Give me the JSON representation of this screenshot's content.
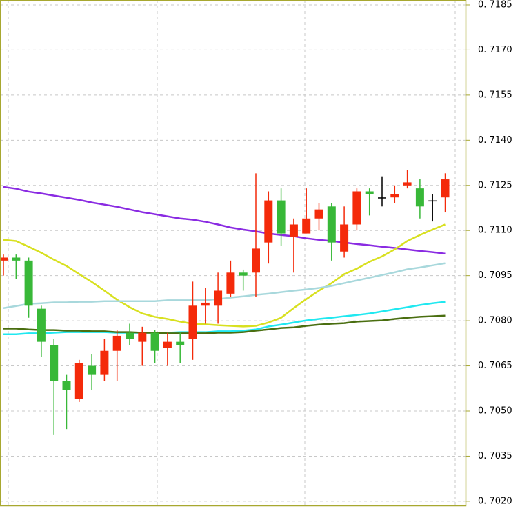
{
  "chart_data": {
    "type": "candlestick",
    "ylim": [
      0.70186,
      0.71866
    ],
    "yticks": [
      {
        "value": 0.7185,
        "label": "0. 7185"
      },
      {
        "value": 0.717,
        "label": "0. 7170"
      },
      {
        "value": 0.7155,
        "label": "0. 7155"
      },
      {
        "value": 0.714,
        "label": "0. 7140"
      },
      {
        "value": 0.7125,
        "label": "0. 7125"
      },
      {
        "value": 0.711,
        "label": "0. 7110"
      },
      {
        "value": 0.7095,
        "label": "0. 7095"
      },
      {
        "value": 0.708,
        "label": "0. 7080"
      },
      {
        "value": 0.7065,
        "label": "0. 7065"
      },
      {
        "value": 0.705,
        "label": "0. 7050"
      },
      {
        "value": 0.7035,
        "label": "0. 7035"
      },
      {
        "value": 0.702,
        "label": "0. 7020"
      }
    ],
    "grid": true,
    "up_color": "#f42a0a",
    "down_color": "#38b838",
    "doji_color": "#000000",
    "open": [
      0.71,
      0.7101,
      0.71,
      0.7084,
      0.7072,
      0.706,
      0.7054,
      0.7065,
      0.7062,
      0.707,
      0.7076,
      0.7073,
      0.7076,
      0.7071,
      0.7073,
      0.7074,
      0.7085,
      0.7085,
      0.7089,
      0.7096,
      0.7096,
      0.7106,
      0.712,
      0.7108,
      0.7109,
      0.7114,
      0.7118,
      0.7103,
      0.7112,
      0.7123,
      0.7121,
      0.7121,
      0.7125,
      0.7124,
      0.712,
      0.7121
    ],
    "high": [
      0.7102,
      0.7102,
      0.7101,
      0.7085,
      0.7074,
      0.7062,
      0.7067,
      0.7069,
      0.7074,
      0.7077,
      0.7079,
      0.7078,
      0.7077,
      0.7076,
      0.7076,
      0.7093,
      0.7091,
      0.7096,
      0.71,
      0.7097,
      0.7129,
      0.7123,
      0.7124,
      0.7114,
      0.7124,
      0.7119,
      0.7119,
      0.7118,
      0.7124,
      0.7124,
      0.7128,
      0.7125,
      0.713,
      0.7127,
      0.7122,
      0.7129
    ],
    "low": [
      0.7095,
      0.7094,
      0.7081,
      0.7068,
      0.7042,
      0.7044,
      0.7053,
      0.7057,
      0.706,
      0.706,
      0.7072,
      0.7065,
      0.7066,
      0.7065,
      0.7066,
      0.7067,
      0.7079,
      0.7079,
      0.7088,
      0.709,
      0.7088,
      0.7099,
      0.7105,
      0.7096,
      0.7109,
      0.711,
      0.71,
      0.7101,
      0.711,
      0.7115,
      0.7118,
      0.7119,
      0.7124,
      0.7114,
      0.7113,
      0.7116
    ],
    "close": [
      0.7101,
      0.71,
      0.7085,
      0.7073,
      0.706,
      0.7057,
      0.7066,
      0.7062,
      0.707,
      0.7075,
      0.7074,
      0.7076,
      0.707,
      0.7073,
      0.7072,
      0.7085,
      0.7086,
      0.709,
      0.7096,
      0.7095,
      0.7104,
      0.712,
      0.7109,
      0.7112,
      0.7114,
      0.7117,
      0.7106,
      0.7112,
      0.7123,
      0.7122,
      0.7121,
      0.7122,
      0.7126,
      0.7118,
      0.712,
      0.7127
    ],
    "series": [
      {
        "color": "#8a2be2",
        "values": [
          0.71245,
          0.71239,
          0.71229,
          0.71223,
          0.71216,
          0.71209,
          0.71202,
          0.71193,
          0.71186,
          0.71179,
          0.7117,
          0.71161,
          0.71154,
          0.71147,
          0.7114,
          0.71136,
          0.71129,
          0.7112,
          0.7111,
          0.71103,
          0.71097,
          0.7109,
          0.71085,
          0.71081,
          0.71074,
          0.71069,
          0.71065,
          0.7106,
          0.71055,
          0.71051,
          0.71046,
          0.71042,
          0.71037,
          0.71032,
          0.71028,
          0.71023
        ]
      },
      {
        "color": "#d8e020",
        "values": [
          0.71069,
          0.71065,
          0.71046,
          0.71026,
          0.71003,
          0.70982,
          0.70955,
          0.70929,
          0.709,
          0.7087,
          0.70845,
          0.70824,
          0.70813,
          0.70806,
          0.70797,
          0.7079,
          0.70788,
          0.70785,
          0.70783,
          0.70781,
          0.70783,
          0.70794,
          0.7081,
          0.70842,
          0.70872,
          0.709,
          0.70925,
          0.70955,
          0.70973,
          0.70996,
          0.71014,
          0.71037,
          0.71065,
          0.71085,
          0.71103,
          0.7112
        ]
      },
      {
        "color": "#a8d8dc",
        "values": [
          0.70842,
          0.70849,
          0.70856,
          0.70858,
          0.70861,
          0.70861,
          0.70863,
          0.70863,
          0.70865,
          0.70865,
          0.70865,
          0.70865,
          0.70865,
          0.70868,
          0.70868,
          0.70868,
          0.70868,
          0.70872,
          0.70877,
          0.70881,
          0.70886,
          0.7089,
          0.70895,
          0.709,
          0.70904,
          0.70909,
          0.70916,
          0.70925,
          0.70934,
          0.70943,
          0.70952,
          0.70961,
          0.70971,
          0.70977,
          0.70984,
          0.70991
        ]
      },
      {
        "color": "#20e8f0",
        "values": [
          0.70755,
          0.70755,
          0.70758,
          0.70758,
          0.7076,
          0.70762,
          0.70762,
          0.70762,
          0.70762,
          0.7076,
          0.7076,
          0.7076,
          0.7076,
          0.7076,
          0.70762,
          0.70762,
          0.70762,
          0.70765,
          0.70765,
          0.70767,
          0.70771,
          0.70781,
          0.70787,
          0.70794,
          0.70801,
          0.70806,
          0.7081,
          0.70815,
          0.70819,
          0.70824,
          0.70831,
          0.70838,
          0.70845,
          0.70852,
          0.70858,
          0.70863
        ]
      },
      {
        "color": "#4a6e10",
        "values": [
          0.70774,
          0.70774,
          0.70771,
          0.70769,
          0.70769,
          0.70767,
          0.70767,
          0.70765,
          0.70765,
          0.70762,
          0.70762,
          0.7076,
          0.7076,
          0.70758,
          0.70758,
          0.70758,
          0.70758,
          0.7076,
          0.7076,
          0.70762,
          0.70767,
          0.70771,
          0.70776,
          0.70778,
          0.70783,
          0.70787,
          0.7079,
          0.70792,
          0.70797,
          0.70799,
          0.70801,
          0.70806,
          0.7081,
          0.70813,
          0.70815,
          0.70817
        ]
      }
    ]
  }
}
